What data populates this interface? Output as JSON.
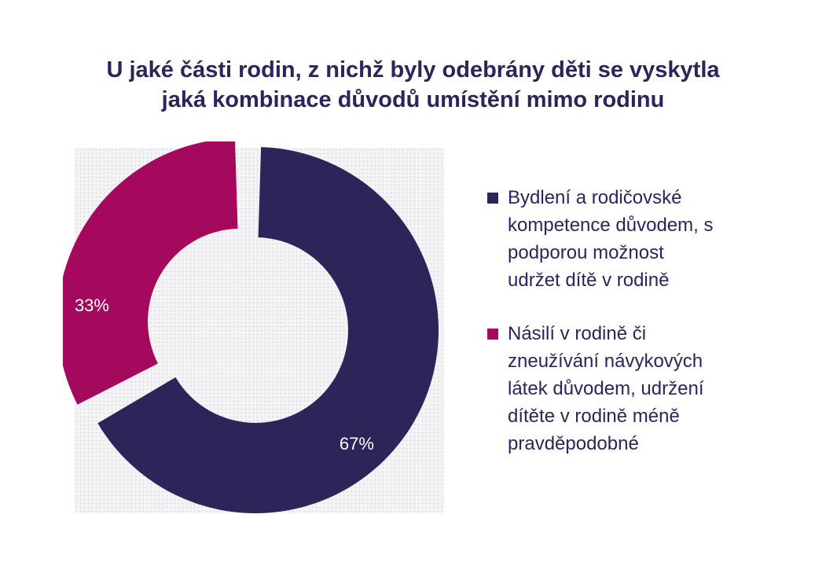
{
  "chart_data": {
    "type": "pie",
    "style": "donut",
    "title_lines": [
      "U jaké části rodin, z nichž byly odebrány děti se vyskytla",
      "jaká kombinace důvodů umístění mimo rodinu"
    ],
    "slices": [
      {
        "name": "Bydlení a rodičovské kompetence důvodem, s podporou možnost udržet dítě v rodině",
        "legend_lines": [
          "Bydlení a rodičovské",
          "kompetence důvodem, s",
          "podporou možnost",
          "udržet dítě v rodině"
        ],
        "value": 67,
        "label": "67%",
        "color": "#2c2559"
      },
      {
        "name": "Násilí v rodině či zneužívání návykových látek důvodem, udržení dítěte v rodině méně pravděpodobné",
        "legend_lines": [
          "Násilí v rodině či",
          "zneužívání návykových",
          "látek důvodem, udržení",
          "dítěte v rodině méně",
          "pravděpodobné"
        ],
        "value": 33,
        "label": "33%",
        "color": "#a5095e"
      }
    ],
    "legend_position": "right",
    "exploded_slice": "Násilí v rodině či zneužívání návykových látek důvodem, udržení dítěte v rodině méně pravděpodobné"
  }
}
